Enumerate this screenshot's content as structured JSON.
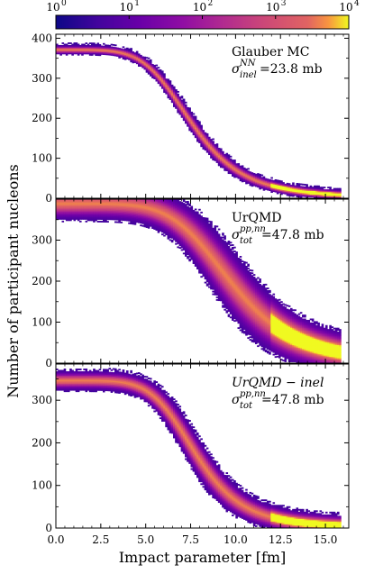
{
  "chart_data": {
    "type": "heatmap",
    "colormap": "plasma",
    "colorbar": {
      "scale": "log",
      "range": [
        1,
        10000
      ],
      "ticks": [
        {
          "base": "10",
          "exp": "0"
        },
        {
          "base": "10",
          "exp": "1"
        },
        {
          "base": "10",
          "exp": "2"
        },
        {
          "base": "10",
          "exp": "3"
        },
        {
          "base": "10",
          "exp": "4"
        }
      ]
    },
    "xlabel": "Impact parameter [fm]",
    "ylabel": "Number of participant nucleons",
    "xlim": [
      0,
      16.3
    ],
    "xticks": [
      "0.0",
      "2.5",
      "5.0",
      "7.5",
      "10.0",
      "12.5",
      "15.0"
    ],
    "xtick_values": [
      0,
      2.5,
      5,
      7.5,
      10,
      12.5,
      15
    ],
    "panels": [
      {
        "name": "Glauber MC",
        "label_line1": "Glauber MC",
        "sigma_symbol": "σ",
        "sigma_sup": "NN",
        "sigma_sub": "inel",
        "sigma_value": "=23.8 mb",
        "italic": false,
        "ylim": [
          0,
          410
        ],
        "yticks": [
          "0",
          "100",
          "200",
          "300",
          "400"
        ],
        "ytick_values": [
          0,
          100,
          200,
          300,
          400
        ],
        "band": {
          "y0": 370,
          "b_half": 7.6,
          "steep": 2.4,
          "spread": 8,
          "b_end": 15.9
        }
      },
      {
        "name": "UrQMD",
        "label_line1": "UrQMD",
        "sigma_symbol": "σ",
        "sigma_sup": "pp,nn",
        "sigma_sub": "tot",
        "sigma_value": "=47.8 mb",
        "italic": false,
        "ylim": [
          0,
          400
        ],
        "yticks": [
          "0",
          "100",
          "200",
          "300"
        ],
        "ytick_values": [
          0,
          100,
          200,
          300
        ],
        "band": {
          "y0": 388,
          "b_half": 9.8,
          "steep": 2.5,
          "spread": 28,
          "b_end": 15.9
        }
      },
      {
        "name": "UrQMD-inel",
        "label_line1": "UrQMD − inel",
        "sigma_symbol": "σ",
        "sigma_sup": "pp,nn",
        "sigma_sub": "tot",
        "sigma_value": "=47.8 mb",
        "italic": true,
        "ylim": [
          0,
          385
        ],
        "yticks": [
          "0",
          "100",
          "200",
          "300"
        ],
        "ytick_values": [
          0,
          100,
          200,
          300
        ],
        "band": {
          "y0": 345,
          "b_half": 7.8,
          "steep": 2.7,
          "spread": 16,
          "b_end": 15.9
        }
      }
    ]
  }
}
